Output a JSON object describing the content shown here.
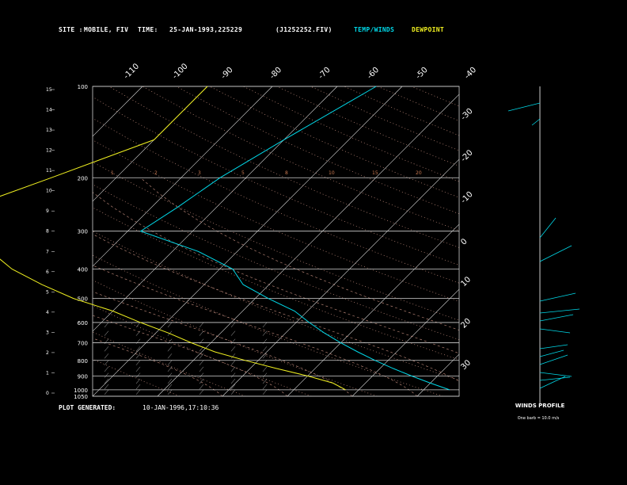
{
  "header": {
    "site_label": "SITE :",
    "site_value": "MOBILE, FIV",
    "time_label": "TIME:",
    "time_value": "25-JAN-1993,225229",
    "file_id": "(J1252252.FIV)",
    "legend_temp": "TEMP/WINDS",
    "legend_dew": "DEWPOINT"
  },
  "footer": {
    "generated_label": "PLOT GENERATED:",
    "generated_value": "10-JAN-1996,17:10:36"
  },
  "winds_panel": {
    "title": "WINDS PROFILE",
    "subtitle": "One barb = 10.0 m/s"
  },
  "colors": {
    "temp": "#00d8e8",
    "dew": "#f0f020",
    "grid": "#d0d0d0",
    "dry_adiabat": "#c89080",
    "mixing_ratio": "#c89080",
    "isotherm": "#e0e0e0",
    "axis_label": "#8888ff"
  },
  "chart_data": {
    "type": "line",
    "title": "",
    "xlabel": "",
    "ylabel": "",
    "pressure_ticks": [
      "100",
      "200",
      "300",
      "400",
      "500",
      "600",
      "700",
      "800",
      "900",
      "1000",
      "1050"
    ],
    "pressure_levels": [
      100,
      200,
      300,
      400,
      500,
      600,
      700,
      800,
      900,
      1000,
      1050
    ],
    "height_ticks": [
      "15",
      "14",
      "13",
      "12",
      "11",
      "10",
      "9",
      "8",
      "7",
      "6",
      "5",
      "4",
      "3",
      "2",
      "1",
      "0"
    ],
    "top_isotherm_labels": [
      "-110",
      "-100",
      "-90",
      "-80",
      "-70",
      "-60",
      "-50",
      "-40"
    ],
    "right_isotherm_labels": [
      "-30",
      "-20",
      "-10",
      "0",
      "10",
      "20",
      "30"
    ],
    "mixing_ratio_labels": [
      "1",
      "2",
      "3",
      "5",
      "8",
      "10",
      "15",
      "20"
    ],
    "series": [
      {
        "name": "TEMP/WINDS",
        "pressure": [
          100,
          150,
          200,
          250,
          300,
          350,
          400,
          450,
          500,
          550,
          600,
          650,
          700,
          750,
          800,
          850,
          900,
          950,
          1000
        ],
        "temp": [
          -44,
          -50,
          -54,
          -56,
          -58,
          -46,
          -38,
          -34,
          -28,
          -22,
          -18,
          -14,
          -10,
          -6,
          -2,
          2,
          6,
          10,
          14
        ]
      },
      {
        "name": "DEWPOINT",
        "pressure": [
          100,
          150,
          200,
          250,
          300,
          350,
          400,
          450,
          500,
          550,
          600,
          650,
          700,
          750,
          800,
          850,
          900,
          950,
          1000
        ],
        "temp": [
          -70,
          -70,
          -80,
          -88,
          -84,
          -78,
          -72,
          -65,
          -58,
          -50,
          -44,
          -38,
          -33,
          -28,
          -22,
          -16,
          -10,
          -5,
          -2
        ]
      }
    ]
  }
}
